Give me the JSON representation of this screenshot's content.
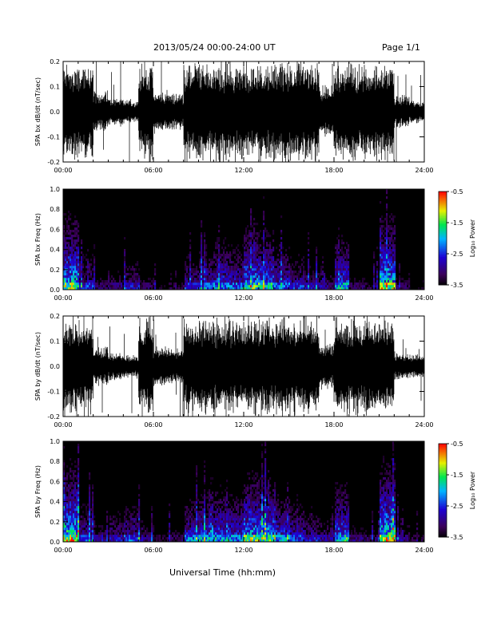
{
  "page": {
    "date_range": "2013/05/24  00:00-24:00 UT",
    "page_label": "Page 1/1",
    "x_axis_title": "Universal Time (hh:mm)"
  },
  "chart_data": [
    {
      "type": "line",
      "series": [
        {
          "name": "SPA bx dB/dt",
          "envelope_hourly": [
            0.21,
            0.21,
            0.09,
            0.06,
            0.05,
            0.21,
            0.09,
            0.08,
            0.21,
            0.21,
            0.21,
            0.21,
            0.21,
            0.21,
            0.21,
            0.21,
            0.21,
            0.11,
            0.21,
            0.21,
            0.21,
            0.21,
            0.07,
            0.05
          ]
        }
      ],
      "ylabel": "SPA bx dB/dt (nT/sec)",
      "ylim": [
        -0.2,
        0.2
      ],
      "yticks": [
        "0.2",
        "0.1",
        "0.0",
        "-0.1",
        "-0.2"
      ],
      "xticks": [
        "00:00",
        "06:00",
        "12:00",
        "18:00",
        "24:00"
      ]
    },
    {
      "type": "heatmap",
      "ylabel": "SPA bx Freq (Hz)",
      "ylim": [
        0,
        1.0
      ],
      "yticks": [
        "1.0",
        "0.8",
        "0.6",
        "0.4",
        "0.2",
        "0.0"
      ],
      "xticks": [
        "00:00",
        "06:00",
        "12:00",
        "18:00",
        "24:00"
      ],
      "colorbar": {
        "label": "Log₁₀ Power",
        "range": [
          -3.5,
          -0.5
        ],
        "ticks": [
          "-0.5",
          "-1.5",
          "-2.5",
          "-3.5"
        ]
      },
      "activity_hourly": [
        0.9,
        0.5,
        0.3,
        0.35,
        0.45,
        0.3,
        0.2,
        0.25,
        0.5,
        0.55,
        0.65,
        0.6,
        0.8,
        0.75,
        0.6,
        0.5,
        0.4,
        0.35,
        0.7,
        0.3,
        0.25,
        0.9,
        0.3,
        0.2
      ]
    },
    {
      "type": "line",
      "series": [
        {
          "name": "SPA by dB/dt",
          "envelope_hourly": [
            0.21,
            0.21,
            0.08,
            0.06,
            0.05,
            0.21,
            0.09,
            0.08,
            0.21,
            0.21,
            0.21,
            0.21,
            0.21,
            0.21,
            0.21,
            0.21,
            0.21,
            0.1,
            0.21,
            0.21,
            0.21,
            0.21,
            0.06,
            0.05
          ]
        }
      ],
      "ylabel": "SPA by dB/dt (nT/sec)",
      "ylim": [
        -0.2,
        0.2
      ],
      "yticks": [
        "0.2",
        "0.1",
        "0.0",
        "-0.1",
        "-0.2"
      ],
      "xticks": [
        "00:00",
        "06:00",
        "12:00",
        "18:00",
        "24:00"
      ]
    },
    {
      "type": "heatmap",
      "ylabel": "SPA by Freq (Hz)",
      "ylim": [
        0,
        1.0
      ],
      "yticks": [
        "1.0",
        "0.8",
        "0.6",
        "0.4",
        "0.2",
        "0.0"
      ],
      "xticks": [
        "00:00",
        "06:00",
        "12:00",
        "18:00",
        "24:00"
      ],
      "colorbar": {
        "label": "Log₁₀ Power",
        "range": [
          -3.5,
          -0.5
        ],
        "ticks": [
          "-0.5",
          "-1.5",
          "-2.5",
          "-3.5"
        ]
      },
      "activity_hourly": [
        0.95,
        0.55,
        0.35,
        0.45,
        0.55,
        0.35,
        0.25,
        0.3,
        0.6,
        0.65,
        0.7,
        0.65,
        0.85,
        0.8,
        0.65,
        0.55,
        0.45,
        0.4,
        0.75,
        0.35,
        0.3,
        0.95,
        0.35,
        0.25
      ]
    }
  ]
}
